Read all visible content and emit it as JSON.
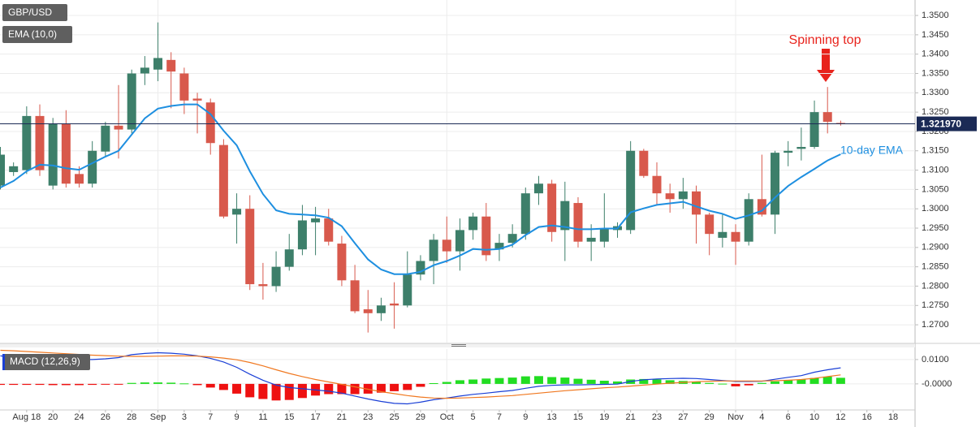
{
  "chart_data": [
    {
      "type": "candlestick",
      "categories": [
        null,
        null,
        "Aug 18",
        null,
        "20",
        null,
        "24",
        null,
        "26",
        null,
        "28",
        null,
        "Sep",
        null,
        "3",
        null,
        "7",
        null,
        "9",
        null,
        "11",
        null,
        "15",
        null,
        "17",
        null,
        "21",
        null,
        "23",
        null,
        "25",
        null,
        "29",
        null,
        "Oct",
        null,
        "5",
        null,
        "7",
        null,
        "9",
        null,
        "13",
        null,
        "15",
        null,
        "19",
        null,
        "21",
        null,
        "23",
        null,
        "27",
        null,
        "29",
        null,
        "Nov",
        null,
        "4",
        null,
        "6",
        null,
        "10",
        null,
        "12",
        null,
        "16",
        null,
        "18",
        null
      ],
      "series": [
        {
          "name": "GBP/USD",
          "up_color": "#3d7f6a",
          "down_color": "#d8594c",
          "open": [
            1.306,
            1.3095,
            1.31,
            1.324,
            1.306,
            1.322,
            1.309,
            1.3065,
            1.3148,
            1.3215,
            1.3205,
            1.335,
            1.336,
            1.3385,
            1.335,
            1.3285,
            1.3275,
            1.3165,
            1.2985,
            1.3,
            1.2805,
            1.28,
            1.285,
            1.2895,
            1.2965,
            1.2975,
            1.291,
            1.2815,
            1.274,
            1.273,
            1.2755,
            1.275,
            1.283,
            1.2865,
            1.292,
            1.289,
            1.2945,
            1.298,
            1.2895,
            1.2912,
            1.2935,
            1.304,
            1.3065,
            1.2945,
            1.3015,
            1.2915,
            1.2915,
            1.2945,
            1.2945,
            1.315,
            1.3085,
            1.304,
            1.3025,
            1.3045,
            1.2985,
            1.2925,
            1.294,
            1.2915,
            1.3025,
            1.2985,
            1.3145,
            1.3155,
            1.316,
            1.325,
            1.3222,
            null,
            null,
            null,
            null,
            null
          ],
          "high": [
            1.316,
            1.312,
            1.3265,
            1.327,
            1.3235,
            1.3255,
            1.311,
            1.3175,
            1.3225,
            1.332,
            1.336,
            1.3395,
            1.3482,
            1.3405,
            1.3365,
            1.33,
            1.3285,
            1.318,
            1.304,
            1.3035,
            1.286,
            1.289,
            1.2935,
            1.301,
            1.3005,
            1.3,
            1.293,
            1.2855,
            1.279,
            1.277,
            1.281,
            1.289,
            1.288,
            1.2935,
            1.298,
            1.2975,
            1.299,
            1.3015,
            1.2935,
            1.296,
            1.3055,
            1.3085,
            1.3075,
            1.307,
            1.303,
            1.296,
            1.304,
            1.2965,
            1.3175,
            1.3155,
            1.312,
            1.3065,
            1.308,
            1.306,
            1.299,
            1.2985,
            1.296,
            1.304,
            1.314,
            1.315,
            1.3175,
            1.321,
            1.328,
            1.3315,
            1.3228,
            null,
            null,
            null,
            null,
            null
          ],
          "low": [
            1.305,
            1.3085,
            1.309,
            1.3085,
            1.305,
            1.3055,
            1.3055,
            1.3055,
            1.3135,
            1.313,
            1.3195,
            1.332,
            1.333,
            1.326,
            1.3245,
            1.3195,
            1.314,
            1.2975,
            1.291,
            1.279,
            1.2765,
            1.2785,
            1.284,
            1.288,
            1.288,
            1.2905,
            1.28,
            1.273,
            1.268,
            1.271,
            1.269,
            1.2745,
            1.2815,
            1.2805,
            1.286,
            1.284,
            1.292,
            1.2865,
            1.2865,
            1.29,
            1.292,
            1.301,
            1.2915,
            1.2865,
            1.29,
            1.2865,
            1.29,
            1.2925,
            1.2935,
            1.308,
            1.301,
            1.299,
            1.3,
            1.291,
            1.288,
            1.29,
            1.2855,
            1.2905,
            1.298,
            1.2935,
            1.311,
            1.3125,
            1.3155,
            1.3195,
            1.3215,
            null,
            null,
            null,
            null,
            null
          ],
          "close": [
            1.314,
            1.311,
            1.324,
            1.31,
            1.322,
            1.3065,
            1.3065,
            1.315,
            1.3215,
            1.3205,
            1.335,
            1.3365,
            1.339,
            1.3355,
            1.328,
            1.328,
            1.317,
            1.298,
            1.3,
            1.2805,
            1.28,
            1.285,
            1.2895,
            1.297,
            1.2975,
            1.2915,
            1.2815,
            1.2735,
            1.273,
            1.275,
            1.275,
            1.283,
            1.2865,
            1.292,
            1.289,
            1.2945,
            1.298,
            1.288,
            1.2912,
            1.2935,
            1.304,
            1.3065,
            1.294,
            1.302,
            1.2915,
            1.2925,
            1.295,
            1.2955,
            1.315,
            1.3085,
            1.304,
            1.3025,
            1.3045,
            1.2985,
            1.2935,
            1.294,
            1.2915,
            1.3025,
            1.2985,
            1.3145,
            1.315,
            1.316,
            1.325,
            1.3225,
            1.322,
            null,
            null,
            null,
            null,
            null
          ]
        },
        {
          "name": "EMA (10,0)",
          "type": "line",
          "color": "#1e8fe0",
          "values": [
            1.3055,
            1.3072,
            1.3097,
            1.3114,
            1.3112,
            1.3105,
            1.3101,
            1.3118,
            1.3135,
            1.315,
            1.3192,
            1.3234,
            1.3259,
            1.3266,
            1.327,
            1.327,
            1.3245,
            1.3202,
            1.3164,
            1.3097,
            1.3038,
            1.2996,
            1.2987,
            1.2985,
            1.2983,
            1.2977,
            1.2955,
            1.2911,
            1.2869,
            1.2843,
            1.2831,
            1.2831,
            1.2837,
            1.2854,
            1.2865,
            1.2879,
            1.2896,
            1.2894,
            1.2896,
            1.2907,
            1.2932,
            1.2953,
            1.2957,
            1.2953,
            1.2947,
            1.2947,
            1.2949,
            1.2949,
            1.2991,
            1.3001,
            1.301,
            1.3014,
            1.3018,
            1.3006,
            1.2995,
            1.2987,
            1.2974,
            1.2983,
            1.2995,
            1.3029,
            1.3059,
            1.3082,
            1.3103,
            1.3125,
            1.3141,
            null,
            null,
            null,
            null,
            null
          ]
        }
      ],
      "ylim": [
        1.2654,
        1.354
      ],
      "yticks": [
        {
          "value": 1.35,
          "label": "1.3500"
        },
        {
          "value": 1.345,
          "label": "1.3450"
        },
        {
          "value": 1.34,
          "label": "1.3400"
        },
        {
          "value": 1.335,
          "label": "1.3350"
        },
        {
          "value": 1.33,
          "label": "1.3300"
        },
        {
          "value": 1.325,
          "label": "1.3250"
        },
        {
          "value": 1.32,
          "label": "1.3200"
        },
        {
          "value": 1.315,
          "label": "1.3150"
        },
        {
          "value": 1.31,
          "label": "1.3100"
        },
        {
          "value": 1.305,
          "label": "1.3050"
        },
        {
          "value": 1.3,
          "label": "1.3000"
        },
        {
          "value": 1.295,
          "label": "1.2950"
        },
        {
          "value": 1.29,
          "label": "1.2900"
        },
        {
          "value": 1.285,
          "label": "1.2850"
        },
        {
          "value": 1.28,
          "label": "1.2800"
        },
        {
          "value": 1.275,
          "label": "1.2750"
        },
        {
          "value": 1.27,
          "label": "1.2700"
        }
      ],
      "grid": true,
      "last_price": {
        "value": 1.32197,
        "label": "1.321970",
        "color": "#1b2a55"
      },
      "annotations": [
        {
          "text": "Spinning top",
          "color": "#e8231c"
        },
        {
          "text": "10-day EMA",
          "color": "#1e8fe0"
        }
      ]
    },
    {
      "type": "macd",
      "title": "MACD (12,26,9)",
      "series": [
        {
          "type": "line",
          "color": "#1a3fd6",
          "values": [
            0.0115,
            0.011,
            0.0108,
            0.0105,
            0.0103,
            0.0102,
            0.01,
            0.01,
            0.0103,
            0.0108,
            0.012,
            0.0125,
            0.0128,
            0.0126,
            0.0122,
            0.0115,
            0.0105,
            0.009,
            0.0068,
            0.004,
            0.0015,
            -0.0005,
            -0.0015,
            -0.002,
            -0.0025,
            -0.003,
            -0.0038,
            -0.005,
            -0.0062,
            -0.0072,
            -0.008,
            -0.0082,
            -0.0075,
            -0.0065,
            -0.0058,
            -0.005,
            -0.0043,
            -0.0038,
            -0.0032,
            -0.0027,
            -0.0018,
            -0.001,
            -0.0006,
            -0.0004,
            -0.0004,
            -0.0003,
            -0.0002,
            -0.0001,
            0.001,
            0.0017,
            0.002,
            0.0022,
            0.0023,
            0.0022,
            0.0018,
            0.0014,
            0.001,
            0.001,
            0.0011,
            0.0019,
            0.0027,
            0.0034,
            0.0048,
            0.0058,
            0.0066,
            null,
            null,
            null,
            null,
            null
          ]
        },
        {
          "type": "line",
          "color": "#f07820",
          "values": [
            0.0138,
            0.0136,
            0.0133,
            0.013,
            0.0127,
            0.0124,
            0.0121,
            0.0118,
            0.0116,
            0.0114,
            0.0113,
            0.0113,
            0.0114,
            0.0115,
            0.0115,
            0.0114,
            0.0111,
            0.0106,
            0.0099,
            0.0088,
            0.0074,
            0.0058,
            0.0043,
            0.003,
            0.0018,
            0.0008,
            -0.0002,
            -0.0012,
            -0.0022,
            -0.0032,
            -0.004,
            -0.0048,
            -0.0054,
            -0.0058,
            -0.0059,
            -0.0058,
            -0.0056,
            -0.0054,
            -0.0051,
            -0.0048,
            -0.0043,
            -0.0038,
            -0.0033,
            -0.0028,
            -0.0024,
            -0.002,
            -0.0016,
            -0.0013,
            -0.0009,
            -0.0005,
            -0.0001,
            0.0003,
            0.0006,
            0.0009,
            0.0011,
            0.0012,
            0.0012,
            0.0012,
            0.0012,
            0.0013,
            0.0015,
            0.0018,
            0.0023,
            0.003,
            0.0037,
            null,
            null,
            null,
            null,
            null
          ]
        },
        {
          "type": "histogram",
          "up_color": "#22dd22",
          "down_color": "#ee1111",
          "values": [
            -0.0004,
            -0.0004,
            -0.0004,
            -0.0004,
            -0.0005,
            -0.0005,
            -0.0005,
            -0.0004,
            -0.0003,
            -0.0002,
            0.0004,
            0.0006,
            0.0006,
            0.0005,
            0.0002,
            -0.0005,
            -0.0015,
            -0.0025,
            -0.004,
            -0.0055,
            -0.0062,
            -0.0068,
            -0.0066,
            -0.0058,
            -0.0048,
            -0.0042,
            -0.0042,
            -0.0042,
            -0.004,
            -0.0036,
            -0.003,
            -0.0025,
            -0.0012,
            0.0003,
            0.0008,
            0.0015,
            0.0018,
            0.0022,
            0.0024,
            0.0026,
            0.0031,
            0.0032,
            0.0028,
            0.0026,
            0.0021,
            0.0017,
            0.0013,
            0.001,
            0.0018,
            0.002,
            0.0018,
            0.0015,
            0.0012,
            0.0009,
            0.0004,
            0.0001,
            -0.001,
            -0.0006,
            0.0004,
            0.001,
            0.0015,
            0.0018,
            0.0024,
            0.003,
            0.0025,
            null,
            null,
            null,
            null,
            null
          ]
        }
      ],
      "ylim": [
        -0.0107,
        0.0143
      ],
      "yticks": [
        {
          "value": 0.01,
          "label": "0.0100"
        },
        {
          "value": 0,
          "label": "-0.0000"
        }
      ]
    }
  ]
}
